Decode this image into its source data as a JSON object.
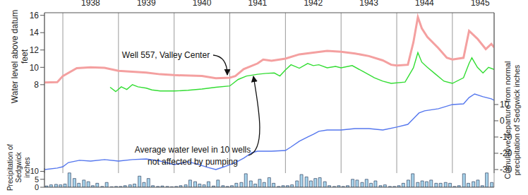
{
  "chart_data": [
    {
      "type": "line",
      "y_label": "Water level above datum feet",
      "y2_label": "Cumulative departure from normal precipitation of Sedgwick inches",
      "xlim": [
        1937.67,
        1945.75
      ],
      "xticks": [
        1938,
        1939,
        1940,
        1941,
        1942,
        1943,
        1944,
        1945
      ],
      "ylim": [
        -2.2,
        16.3
      ],
      "yticks": [
        8,
        10,
        12,
        14,
        16
      ],
      "y2lim": [
        -32.2,
        66.5
      ],
      "y2ticks": [
        -30,
        -20,
        -10,
        0,
        10
      ],
      "grid": true,
      "series": [
        {
          "name": "Well 557, Valley Center",
          "color": "#f4a0a0",
          "x": [
            1937.67,
            1937.9,
            1938.0,
            1938.25,
            1938.5,
            1938.75,
            1939.0,
            1939.25,
            1939.5,
            1939.75,
            1940.0,
            1940.5,
            1940.75,
            1941.0,
            1941.1,
            1941.25,
            1941.5,
            1941.6,
            1941.75,
            1942.0,
            1942.25,
            1942.5,
            1942.75,
            1943.0,
            1943.25,
            1943.5,
            1943.75,
            1943.9,
            1944.0,
            1944.2,
            1944.3,
            1944.38,
            1944.45,
            1944.55,
            1944.75,
            1944.9,
            1945.0,
            1945.2,
            1945.3,
            1945.45,
            1945.6,
            1945.7,
            1945.75
          ],
          "values": [
            8.25,
            8.3,
            9.0,
            9.9,
            10.0,
            9.95,
            9.6,
            9.5,
            9.4,
            9.2,
            9.1,
            9.0,
            8.75,
            8.8,
            9.0,
            9.8,
            10.45,
            10.9,
            10.75,
            11.0,
            11.5,
            11.7,
            11.9,
            11.8,
            11.6,
            11.3,
            10.8,
            10.3,
            10.2,
            10.3,
            12.9,
            15.8,
            14.5,
            13.5,
            12.2,
            11.1,
            10.9,
            11.1,
            14.2,
            13.3,
            12.1,
            12.7,
            12.3
          ]
        },
        {
          "name": "Average water level in 10 wells not affected by pumping",
          "color": "#33dd33",
          "x": [
            1938.85,
            1938.95,
            1939.05,
            1939.15,
            1939.25,
            1939.35,
            1939.5,
            1939.6,
            1939.75,
            1940.0,
            1940.25,
            1940.5,
            1940.75,
            1941.0,
            1941.15,
            1941.3,
            1941.5,
            1941.65,
            1941.8,
            1941.9,
            1942.0,
            1942.1,
            1942.25,
            1942.4,
            1942.5,
            1942.6,
            1942.75,
            1942.9,
            1943.0,
            1943.2,
            1943.4,
            1943.6,
            1943.75,
            1943.9,
            1944.15,
            1944.3,
            1944.38,
            1944.45,
            1944.55,
            1944.7,
            1944.85,
            1945.0,
            1945.2,
            1945.3,
            1945.35,
            1945.45,
            1945.55,
            1945.65,
            1945.75
          ],
          "values": [
            7.7,
            7.2,
            7.75,
            7.45,
            8.0,
            7.75,
            7.6,
            7.4,
            7.27,
            7.27,
            7.35,
            7.5,
            7.7,
            7.85,
            8.6,
            9.0,
            9.2,
            9.3,
            9.35,
            9.0,
            9.7,
            10.3,
            9.9,
            10.45,
            10.2,
            10.3,
            9.95,
            10.1,
            9.95,
            10.2,
            9.5,
            8.8,
            8.4,
            8.15,
            8.3,
            9.95,
            11.7,
            10.6,
            10.0,
            9.2,
            8.4,
            8.15,
            8.8,
            10.45,
            11.1,
            10.0,
            9.35,
            10.0,
            9.75
          ]
        },
        {
          "color": "#5577ee",
          "axis": "y2",
          "x": [
            1937.67,
            1937.9,
            1938.0,
            1938.1,
            1938.3,
            1938.5,
            1938.75,
            1939.0,
            1939.25,
            1939.5,
            1939.75,
            1940.0,
            1940.25,
            1940.4,
            1940.6,
            1940.75,
            1940.9,
            1941.0,
            1941.1,
            1941.25,
            1941.4,
            1941.5,
            1941.75,
            1942.0,
            1942.1,
            1942.25,
            1942.4,
            1942.5,
            1942.6,
            1942.75,
            1943.0,
            1943.25,
            1943.5,
            1943.75,
            1944.0,
            1944.2,
            1944.3,
            1944.4,
            1944.5,
            1944.75,
            1945.0,
            1945.2,
            1945.3,
            1945.4,
            1945.55,
            1945.7,
            1945.75
          ],
          "values": [
            -30,
            -29.1,
            -28.3,
            -25.7,
            -24.3,
            -24.8,
            -23.9,
            -24.8,
            -23.9,
            -23.5,
            -24.8,
            -27,
            -25.2,
            -26.5,
            -28.7,
            -30,
            -28.3,
            -27,
            -25.7,
            -23,
            -19.6,
            -18.7,
            -18.7,
            -18.3,
            -16.1,
            -12.6,
            -10,
            -8.3,
            -6.5,
            -5.7,
            -5.7,
            -4.8,
            -4.8,
            -5.7,
            -3.9,
            -2.2,
            1.3,
            4.8,
            6.1,
            7.4,
            10,
            10.4,
            14.3,
            16.5,
            14.8,
            13.5,
            12.6
          ]
        }
      ]
    },
    {
      "type": "bar",
      "y_label": "Precipitation of Sedgwick inches",
      "xlim": [
        1937.67,
        1945.75
      ],
      "xticks": [
        1938,
        1939,
        1940,
        1941,
        1942,
        1943,
        1944,
        1945
      ],
      "ylim": [
        0,
        12
      ],
      "yticks": [
        0,
        5,
        10
      ],
      "grid": true,
      "tick_labels": "y",
      "color": "#a8d4ec",
      "x": [
        1937.71,
        1937.79,
        1937.88,
        1937.96,
        1938.04,
        1938.12,
        1938.21,
        1938.29,
        1938.38,
        1938.46,
        1938.54,
        1938.62,
        1938.71,
        1938.79,
        1938.88,
        1938.96,
        1939.04,
        1939.12,
        1939.21,
        1939.29,
        1939.38,
        1939.46,
        1939.54,
        1939.62,
        1939.71,
        1939.79,
        1939.88,
        1939.96,
        1940.04,
        1940.12,
        1940.21,
        1940.29,
        1940.38,
        1940.46,
        1940.54,
        1940.62,
        1940.71,
        1940.79,
        1940.88,
        1940.96,
        1941.04,
        1941.12,
        1941.21,
        1941.29,
        1941.38,
        1941.46,
        1941.54,
        1941.62,
        1941.71,
        1941.79,
        1941.88,
        1941.96,
        1942.04,
        1942.12,
        1942.21,
        1942.29,
        1942.38,
        1942.46,
        1942.54,
        1942.62,
        1942.71,
        1942.79,
        1942.88,
        1942.96,
        1943.04,
        1943.12,
        1943.21,
        1943.29,
        1943.38,
        1943.46,
        1943.54,
        1943.62,
        1943.71,
        1943.79,
        1943.88,
        1943.96,
        1944.04,
        1944.12,
        1944.21,
        1944.29,
        1944.38,
        1944.46,
        1944.54,
        1944.62,
        1944.71,
        1944.79,
        1944.88,
        1944.96,
        1945.04,
        1945.12,
        1945.21,
        1945.29,
        1945.38,
        1945.46,
        1945.54,
        1945.62,
        1945.71
      ],
      "values": [
        0.8,
        1.5,
        1.8,
        1.5,
        2.0,
        9.0,
        5.5,
        2.5,
        4.5,
        3.5,
        1.0,
        2.5,
        0.5,
        3.0,
        0.3,
        0.5,
        0.5,
        1.0,
        1.5,
        2.0,
        7.0,
        3.0,
        5.5,
        1.0,
        0.5,
        0.8,
        0.5,
        0.3,
        0.5,
        1.0,
        1.5,
        4.5,
        3.5,
        2.0,
        1.5,
        3.5,
        0.8,
        4.5,
        1.0,
        0.5,
        1.0,
        2.5,
        3.0,
        8.5,
        4.0,
        2.0,
        5.0,
        3.0,
        6.0,
        2.5,
        0.5,
        1.0,
        1.0,
        1.5,
        4.0,
        8.0,
        6.5,
        4.0,
        5.5,
        6.0,
        3.5,
        1.0,
        0.5,
        1.0,
        0.5,
        1.0,
        5.0,
        4.5,
        3.0,
        5.0,
        2.5,
        4.0,
        1.0,
        1.5,
        0.5,
        0.5,
        1.0,
        2.5,
        4.5,
        8.5,
        3.0,
        4.0,
        3.5,
        4.5,
        2.5,
        2.5,
        3.0,
        2.5,
        0.5,
        1.0,
        8.5,
        2.5,
        3.5,
        4.5,
        1.0,
        9.0,
        3.0
      ]
    }
  ]
}
